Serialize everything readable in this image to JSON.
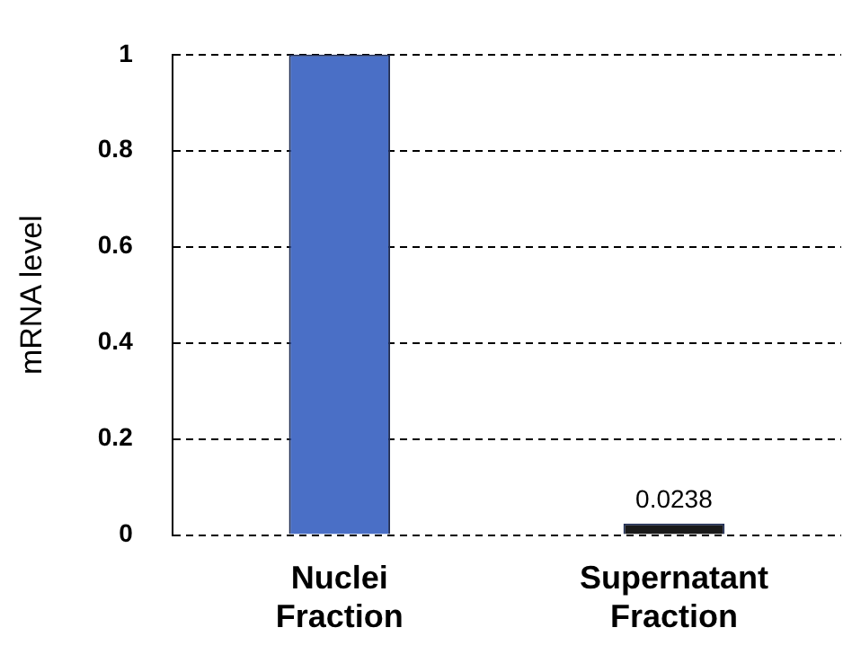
{
  "chart_data": {
    "type": "bar",
    "ylabel": "mRNA level",
    "categories": [
      "Nuclei Fraction",
      "Supernatant Fraction"
    ],
    "values": [
      1,
      0.0238
    ],
    "colors": [
      "#4a6fc6",
      "#1a1a1a"
    ],
    "value_labels": [
      null,
      "0.0238"
    ],
    "ylim": [
      0,
      1
    ],
    "yticks": [
      0,
      0.2,
      0.4,
      0.6,
      0.8,
      1
    ],
    "grid": "y",
    "legend": false
  }
}
